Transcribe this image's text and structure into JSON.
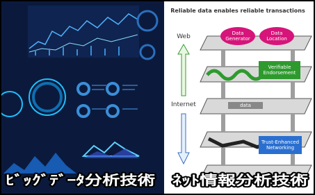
{
  "left_panel": {
    "caption": "ﾋﾞｯｸﾞﾃﾞｰﾀ分析技術"
  },
  "right_panel": {
    "title": "Reliable data enables reliable transactions",
    "layer_labels": [
      "Web",
      "Internet"
    ],
    "nodes": [
      {
        "label_lines": [
          "Data",
          "Generator"
        ]
      },
      {
        "label_lines": [
          "Data",
          "Location"
        ]
      },
      {
        "label_lines": [
          "Verifiable",
          "Endorsement"
        ]
      },
      {
        "label_lines": [
          "data"
        ]
      },
      {
        "label_lines": [
          "Trust-Enhanced",
          "Networking"
        ]
      }
    ],
    "caption": "ﾈｯﾄ情報分析技術"
  }
}
